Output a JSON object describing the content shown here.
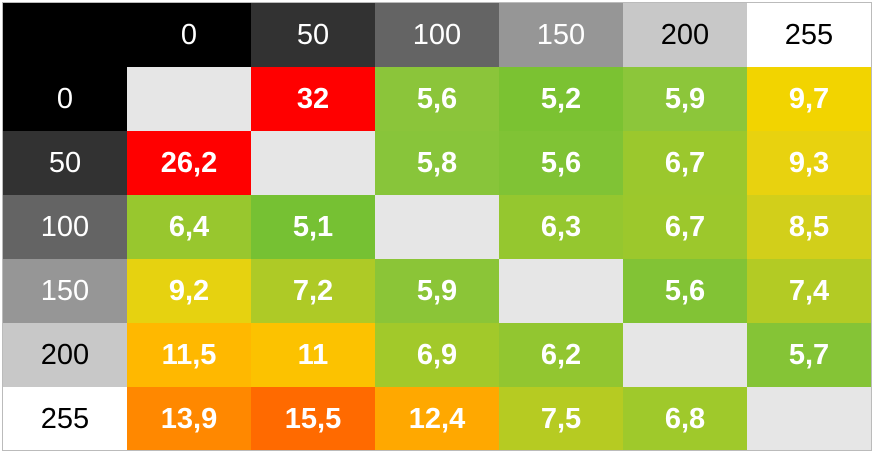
{
  "table": {
    "columns": [
      0,
      50,
      100,
      150,
      200,
      255
    ],
    "rows": [
      {
        "label": 0,
        "cells": [
          null,
          "32",
          "5,6",
          "5,2",
          "5,9",
          "9,7"
        ],
        "colors": [
          "#e6e6e6",
          "#ff0000",
          "#8bc53a",
          "#7bc232",
          "#8cc63a",
          "#f2d400"
        ]
      },
      {
        "label": 50,
        "cells": [
          "26,2",
          null,
          "5,8",
          "5,6",
          "6,7",
          "9,3"
        ],
        "colors": [
          "#ff0000",
          "#e6e6e6",
          "#88c53a",
          "#80c335",
          "#9bc82d",
          "#e8d20f"
        ]
      },
      {
        "label": 100,
        "cells": [
          "6,4",
          "5,1",
          null,
          "6,3",
          "6,7",
          "8,5"
        ],
        "colors": [
          "#98c72e",
          "#76c133",
          "#e6e6e6",
          "#95c72f",
          "#9cc82c",
          "#d2cf1a"
        ]
      },
      {
        "label": 150,
        "cells": [
          "9,2",
          "7,2",
          "5,9",
          null,
          "5,6",
          "7,4"
        ],
        "colors": [
          "#e6d210",
          "#aeca26",
          "#8bc537",
          "#e6e6e6",
          "#82c335",
          "#b3cb24"
        ]
      },
      {
        "label": 200,
        "cells": [
          "11,5",
          "11",
          "6,9",
          "6,2",
          null,
          "5,7"
        ],
        "colors": [
          "#ffb800",
          "#fcc200",
          "#a2c92a",
          "#92c630",
          "#e6e6e6",
          "#85c436"
        ]
      },
      {
        "label": 255,
        "cells": [
          "13,9",
          "15,5",
          "12,4",
          "7,5",
          "6,8",
          null
        ],
        "colors": [
          "#ff8800",
          "#ff6a00",
          "#ffa800",
          "#b6cb22",
          "#9fc92b",
          "#e6e6e6"
        ]
      }
    ]
  }
}
